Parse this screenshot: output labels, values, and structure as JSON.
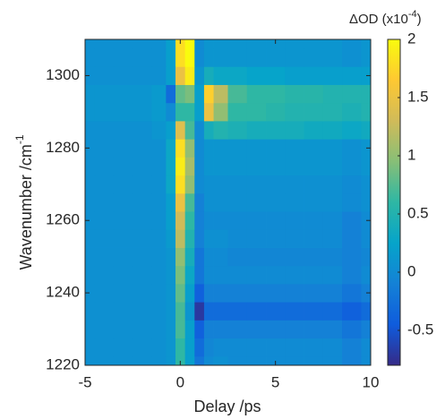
{
  "chart_data": {
    "type": "heatmap",
    "xlabel": "Delay /ps",
    "ylabel": "Wavenumber /cm",
    "ylabel_sup": "-1",
    "colorbar_label": "ΔOD (x10",
    "colorbar_label_sup": "-4",
    "colorbar_label_end": ")",
    "colormap": "parula",
    "x": [
      -5,
      -4,
      -3,
      -2,
      -1,
      -0.5,
      0,
      0.5,
      1,
      1.5,
      2,
      3,
      4,
      5,
      6,
      7,
      8,
      9,
      10
    ],
    "y": [
      1220,
      1225,
      1230,
      1235,
      1240,
      1245,
      1250,
      1255,
      1260,
      1265,
      1270,
      1275,
      1280,
      1285,
      1290,
      1295,
      1300,
      1305,
      1310
    ],
    "z": [
      [
        0.05,
        0.05,
        0.05,
        0.05,
        0.05,
        0.1,
        0.6,
        0.2,
        -0.2,
        0,
        0.05,
        0,
        0,
        0,
        0,
        0,
        0,
        -0.1,
        0
      ],
      [
        0.05,
        0.05,
        0.05,
        0.05,
        0.05,
        0.1,
        0.6,
        0.2,
        -0.3,
        -0.05,
        0,
        0,
        0,
        0,
        0,
        0,
        0,
        -0.1,
        0
      ],
      [
        0.05,
        0.05,
        0.05,
        0.05,
        0.05,
        0.1,
        0.7,
        0.2,
        -0.4,
        -0.1,
        -0.1,
        -0.1,
        -0.1,
        -0.1,
        -0.1,
        -0.1,
        -0.1,
        -0.2,
        -0.1
      ],
      [
        0.05,
        0.05,
        0.05,
        0.05,
        0.05,
        0.1,
        0.7,
        0.1,
        -0.7,
        -0.3,
        -0.3,
        -0.3,
        -0.3,
        -0.3,
        -0.3,
        -0.3,
        -0.3,
        -0.4,
        -0.3
      ],
      [
        0.05,
        0.05,
        0.05,
        0.05,
        0.05,
        0.1,
        0.8,
        0.2,
        -0.4,
        -0.1,
        -0.1,
        -0.1,
        -0.1,
        -0.1,
        -0.1,
        -0.1,
        -0.1,
        -0.2,
        -0.1
      ],
      [
        0.05,
        0.05,
        0.05,
        0.05,
        0.05,
        0.1,
        0.9,
        0.3,
        -0.2,
        0,
        0,
        0,
        0,
        0,
        0,
        0,
        0,
        -0.1,
        0
      ],
      [
        0.05,
        0.05,
        0.05,
        0.05,
        0.05,
        0.1,
        1.0,
        0.4,
        -0.2,
        0,
        0,
        -0.05,
        -0.05,
        -0.05,
        -0.05,
        -0.05,
        -0.05,
        -0.1,
        -0.05
      ],
      [
        0.05,
        0.05,
        0.05,
        0.05,
        0.05,
        0.15,
        1.2,
        0.5,
        -0.1,
        0.05,
        0.05,
        0,
        0,
        0,
        0,
        0,
        0,
        -0.1,
        0
      ],
      [
        0.05,
        0.05,
        0.05,
        0.05,
        0.05,
        0.2,
        1.3,
        0.6,
        -0.1,
        0,
        0,
        0,
        0,
        0,
        0,
        0,
        0,
        -0.1,
        0
      ],
      [
        0.05,
        0.05,
        0.05,
        0.05,
        0.05,
        0.2,
        1.5,
        0.7,
        -0.1,
        0.05,
        0.05,
        0.05,
        0.05,
        0.05,
        0.05,
        0.05,
        0.05,
        0,
        0.05
      ],
      [
        0.05,
        0.05,
        0.05,
        0.05,
        0.05,
        0.3,
        1.8,
        1.0,
        0,
        0.05,
        0.05,
        0.05,
        0.05,
        0.05,
        0.05,
        0.05,
        0.05,
        0,
        0.05
      ],
      [
        0.05,
        0.05,
        0.05,
        0.05,
        0.05,
        0.3,
        1.9,
        1.1,
        0,
        0.1,
        0.1,
        0.1,
        0.1,
        0.1,
        0.1,
        0.1,
        0.1,
        0.05,
        0.1
      ],
      [
        0.05,
        0.05,
        0.05,
        0.05,
        0.05,
        0.3,
        1.8,
        1.0,
        0,
        0.1,
        0.1,
        0.1,
        0.1,
        0.1,
        0.1,
        0.1,
        0.1,
        0.05,
        0.1
      ],
      [
        0.05,
        0.05,
        0.05,
        0.05,
        0.1,
        0.2,
        1.4,
        0.7,
        0,
        0.4,
        0.5,
        0.45,
        0.4,
        0.4,
        0.4,
        0.35,
        0.35,
        0.3,
        0.35
      ],
      [
        0.1,
        0.1,
        0.1,
        0.1,
        0.15,
        0,
        0.6,
        0.6,
        0.2,
        1.5,
        1.0,
        0.6,
        0.6,
        0.55,
        0.5,
        0.5,
        0.5,
        0.45,
        0.5
      ],
      [
        0.1,
        0.1,
        0.1,
        0.1,
        0.15,
        -0.3,
        0.8,
        0.9,
        0.2,
        1.7,
        1.2,
        0.7,
        0.6,
        0.6,
        0.55,
        0.55,
        0.5,
        0.5,
        0.5
      ],
      [
        0.05,
        0.05,
        0.05,
        0.05,
        0.05,
        0.2,
        1.5,
        1.9,
        0.1,
        0.4,
        0.3,
        0.3,
        0.25,
        0.25,
        0.2,
        0.2,
        0.2,
        0.2,
        0.2
      ],
      [
        0.05,
        0.05,
        0.05,
        0.05,
        0.05,
        0.2,
        1.8,
        2.0,
        0,
        0.1,
        0.1,
        0.1,
        0.1,
        0.1,
        0.1,
        0.1,
        0.1,
        0.05,
        0.1
      ],
      [
        0.05,
        0.05,
        0.05,
        0.05,
        0.05,
        0.2,
        1.8,
        2.0,
        0,
        0.1,
        0.1,
        0.1,
        0.1,
        0.1,
        0.1,
        0.1,
        0.1,
        0.05,
        0.1
      ]
    ],
    "xlim": [
      -5,
      10
    ],
    "xticks": [
      -5,
      0,
      5,
      10
    ],
    "ylim": [
      1220,
      1310
    ],
    "yticks": [
      1220,
      1240,
      1260,
      1280,
      1300
    ],
    "clim": [
      -0.8,
      2
    ],
    "cticks": [
      -0.5,
      0,
      0.5,
      1,
      1.5,
      2
    ]
  }
}
